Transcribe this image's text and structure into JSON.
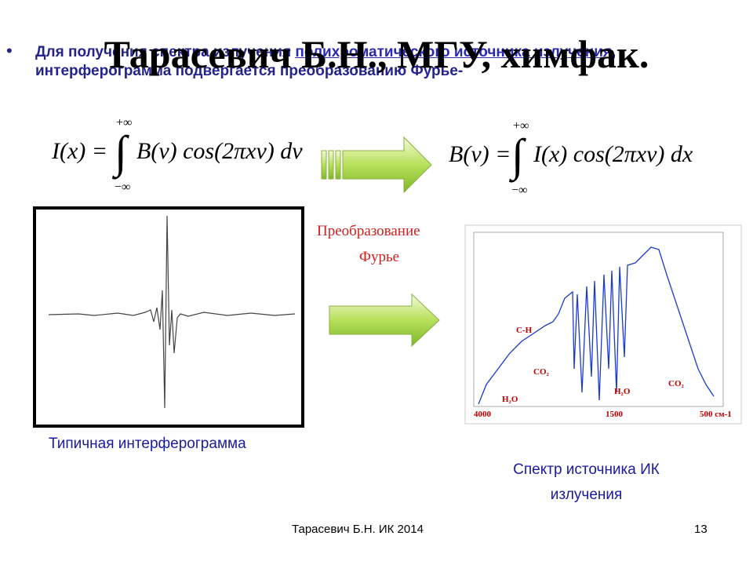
{
  "header": {
    "title": "Тарасевич Б.Н., МГУ, химфак."
  },
  "bullet": {
    "marker": "•",
    "before": "Для получения спектра излучения ",
    "link": "полихроматического источника излучения",
    "after": ", интерферограмма  подвергается преобразованию Фурье-"
  },
  "formulas": [
    {
      "upper": "+∞",
      "lower": "−∞",
      "left": "I(x) = ",
      "integral": "∫",
      "right": "B(ν) cos(2πxν) dν"
    },
    {
      "upper": "+∞",
      "lower": "−∞",
      "left": "B(ν) = ",
      "integral": "∫",
      "right": "I(x) cos(2πxν) dx"
    }
  ],
  "transform_label": [
    "Преобразование",
    "Фурье"
  ],
  "interferogram": {
    "caption": "Типичная интерферограмма"
  },
  "spectrum": {
    "caption": [
      "Спектр источника ИК",
      "излучения"
    ],
    "labels": [
      "C-H",
      "CO₂",
      "H₂O",
      "H₂O",
      "CO₂",
      "4000",
      "1500",
      "500 см-1"
    ]
  },
  "footer": {
    "author": "Тарасевич Б.Н.  ИК 2014",
    "page": "13"
  }
}
